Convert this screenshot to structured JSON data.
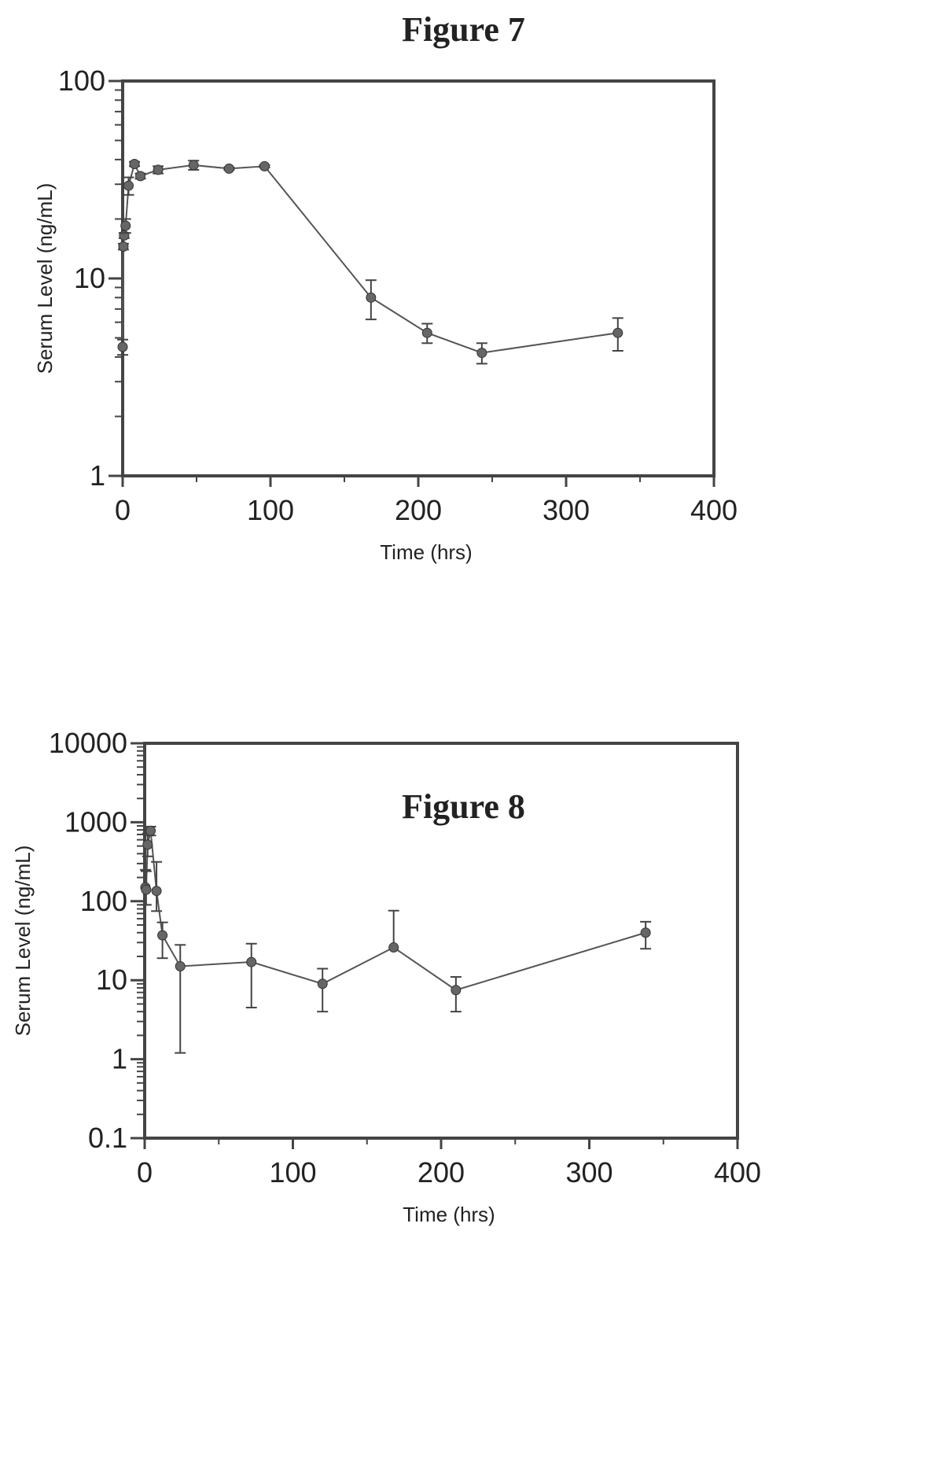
{
  "chart_data": [
    {
      "type": "line",
      "title": "Figure 7",
      "xlabel": "Time (hrs)",
      "ylabel": "Serum Level (ng/mL)",
      "xlim": [
        0,
        400
      ],
      "ylim": [
        1,
        100
      ],
      "y_scale": "log",
      "x_ticks": [
        "0",
        "100",
        "200",
        "300",
        "400"
      ],
      "y_ticks": [
        "1",
        "10",
        "100"
      ],
      "grid": false,
      "series": [
        {
          "x": [
            0,
            0.5,
            1,
            2,
            4,
            8,
            12,
            24,
            48,
            72,
            96,
            168,
            206,
            243,
            335
          ],
          "y": [
            4.5,
            14.5,
            16.5,
            18.5,
            29.5,
            38,
            33,
            35.5,
            37.5,
            36,
            37,
            8,
            5.3,
            4.2,
            5.3
          ],
          "error": [
            0.4,
            0.5,
            0.5,
            1.5,
            3,
            1,
            1,
            1.5,
            2,
            0.5,
            0.5,
            1.8,
            0.6,
            0.5,
            1.0
          ]
        }
      ]
    },
    {
      "type": "line",
      "title": "Figure 8",
      "xlabel": "Time (hrs)",
      "ylabel": "Serum Level (ng/mL)",
      "xlim": [
        0,
        400
      ],
      "ylim": [
        0.1,
        10000
      ],
      "y_scale": "log",
      "x_ticks": [
        "0",
        "100",
        "200",
        "300",
        "400"
      ],
      "y_ticks": [
        "0.1",
        "1",
        "10",
        "100",
        "1000",
        "10000"
      ],
      "grid": false,
      "series": [
        {
          "x": [
            0.5,
            1,
            2,
            4,
            8,
            12,
            24,
            72,
            120,
            168,
            210,
            338
          ],
          "y": [
            150,
            140,
            520,
            780,
            135,
            37,
            15,
            17,
            9,
            26,
            7.5,
            40
          ],
          "error_low": [
            60,
            50,
            150,
            100,
            60,
            18,
            13.8,
            12.5,
            5,
            0,
            3.5,
            15
          ],
          "error_high": [
            100,
            100,
            200,
            100,
            180,
            17,
            13,
            12,
            5,
            50,
            3.5,
            15
          ]
        }
      ]
    }
  ]
}
